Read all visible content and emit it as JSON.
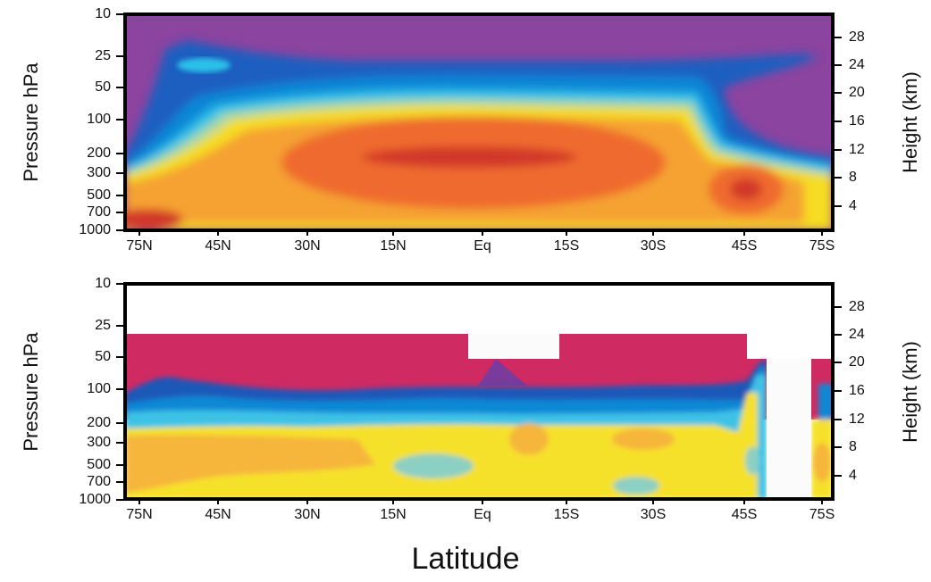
{
  "chart_data": [
    {
      "type": "heatmap",
      "panel": "top",
      "ylabel": "Pressure hPa",
      "y2label": "Height (km)",
      "xticks": [
        "75N",
        "45N",
        "30N",
        "15N",
        "Eq",
        "15S",
        "30S",
        "45S",
        "75S"
      ],
      "yticks": [
        "10",
        "25",
        "50",
        "100",
        "200",
        "300",
        "500",
        "700",
        "1000"
      ],
      "y2ticks": [
        "28",
        "24",
        "20",
        "16",
        "12",
        "8",
        "4"
      ],
      "colors": {
        "stratosphere": "#8b44a0",
        "dark_blue": "#1e5fc0",
        "mid_blue": "#0a86d6",
        "cyan": "#29c0e8",
        "light_green": "#a6d8a8",
        "yellow": "#f6dc24",
        "orange": "#f5a233",
        "deep_orange": "#ef6a2d",
        "red": "#d2372c"
      }
    },
    {
      "type": "heatmap",
      "panel": "bottom",
      "ylabel": "Pressure hPa",
      "y2label": "Height (km)",
      "xticks": [
        "75N",
        "45N",
        "30N",
        "15N",
        "Eq",
        "15S",
        "30S",
        "45S",
        "75S"
      ],
      "yticks": [
        "10",
        "25",
        "50",
        "100",
        "200",
        "300",
        "500",
        "700",
        "1000"
      ],
      "y2ticks": [
        "28",
        "24",
        "20",
        "16",
        "12",
        "8",
        "4"
      ],
      "colors": {
        "magenta": "#d02a63",
        "purple": "#7a3b9c",
        "dark_blue": "#1b58b8",
        "mid_blue": "#0c88d4",
        "cyan": "#3cc2e6",
        "teal": "#8ccfc3",
        "yellow": "#f6e12c",
        "orange": "#f6b53a",
        "red": "#e24e2e"
      }
    }
  ],
  "xlabel": "Latitude"
}
